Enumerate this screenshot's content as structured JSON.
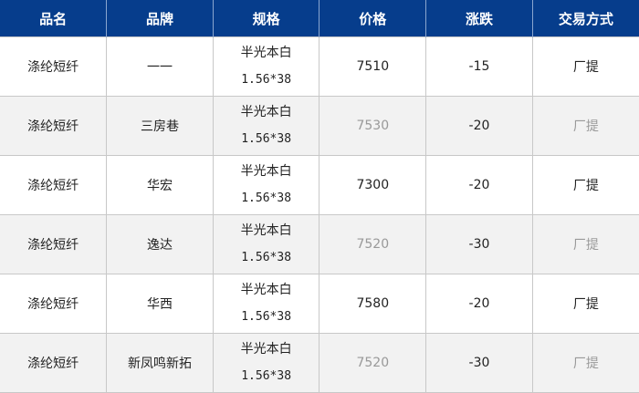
{
  "headers": [
    "品名",
    "品牌",
    "规格",
    "价格",
    "涨跌",
    "交易方式"
  ],
  "rows": [
    {
      "name": "涤纶短纤",
      "brand": "一一",
      "spec1": "半光本白",
      "spec2": "1.56*38",
      "price": "7510",
      "change": "-15",
      "trade": "厂提"
    },
    {
      "name": "涤纶短纤",
      "brand": "三房巷",
      "spec1": "半光本白",
      "spec2": "1.56*38",
      "price": "7530",
      "change": "-20",
      "trade": "厂提"
    },
    {
      "name": "涤纶短纤",
      "brand": "华宏",
      "spec1": "半光本白",
      "spec2": "1.56*38",
      "price": "7300",
      "change": "-20",
      "trade": "厂提"
    },
    {
      "name": "涤纶短纤",
      "brand": "逸达",
      "spec1": "半光本白",
      "spec2": "1.56*38",
      "price": "7520",
      "change": "-30",
      "trade": "厂提"
    },
    {
      "name": "涤纶短纤",
      "brand": "华西",
      "spec1": "半光本白",
      "spec2": "1.56*38",
      "price": "7580",
      "change": "-20",
      "trade": "厂提"
    },
    {
      "name": "涤纶短纤",
      "brand": "新凤鸣新拓",
      "spec1": "半光本白",
      "spec2": "1.56*38",
      "price": "7520",
      "change": "-30",
      "trade": "厂提"
    }
  ],
  "colors": {
    "header_bg": "#063d8c",
    "alt_row_bg": "#f2f2f2",
    "muted_text": "#999999"
  }
}
